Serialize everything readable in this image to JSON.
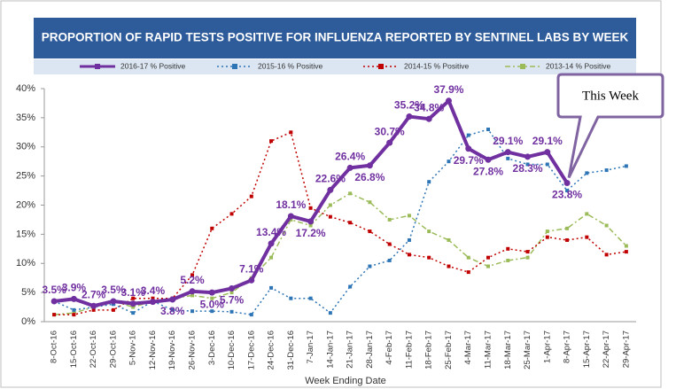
{
  "chart_data": {
    "type": "line",
    "title": "PROPORTION OF RAPID TESTS POSITIVE FOR INFLUENZA REPORTED BY SENTINEL LABS BY WEEK",
    "x_label": "Week Ending Date",
    "annotation": "This Week",
    "categories": [
      "8-Oct-16",
      "15-Oct-16",
      "22-Oct-16",
      "29-Oct-16",
      "5-Nov-16",
      "12-Nov-16",
      "19-Nov-16",
      "26-Nov-16",
      "3-Dec-16",
      "10-Dec-16",
      "17-Dec-16",
      "24-Dec-16",
      "31-Dec-16",
      "7-Jan-17",
      "14-Jan-17",
      "21-Jan-17",
      "28-Jan-17",
      "4-Feb-17",
      "11-Feb-17",
      "18-Feb-17",
      "25-Feb-17",
      "4-Mar-17",
      "11-Mar-17",
      "18-Mar-17",
      "25-Mar-17",
      "1-Apr-17",
      "8-Apr-17",
      "15-Apr-17",
      "22-Apr-17",
      "29-Apr-17"
    ],
    "series": [
      {
        "name": "2016-17 % Positive",
        "color": "#7030a0",
        "values": [
          3.5,
          3.9,
          2.7,
          3.5,
          3.1,
          3.4,
          3.8,
          5.2,
          5.0,
          5.7,
          7.1,
          13.4,
          18.1,
          17.2,
          22.6,
          26.4,
          26.8,
          30.7,
          35.2,
          34.8,
          37.9,
          29.7,
          27.8,
          29.1,
          28.3,
          29.1,
          23.8,
          null,
          null,
          null
        ],
        "value_labels": [
          "3.5%",
          "3.9%",
          "2.7%",
          "3.5%",
          "3.1%",
          "3.4%",
          "3.8%",
          "5.2%",
          "5.0%",
          "5.7%",
          "7.1%",
          "13.4%",
          "18.1%",
          "17.2%",
          "22.6%",
          "26.4%",
          "26.8%",
          "30.7%",
          "35.2%",
          "34.8%",
          "37.9%",
          "29.7%",
          "27.8%",
          "29.1%",
          "28.3%",
          "29.1%",
          "23.8%",
          null,
          null,
          null
        ]
      },
      {
        "name": "2015-16 % Positive",
        "color": "#2e75b6",
        "values": [
          3.5,
          2,
          2.5,
          3,
          1.5,
          3.5,
          2,
          1.8,
          1.8,
          1.7,
          1.2,
          5.8,
          4,
          4,
          1.5,
          6,
          9.5,
          10.5,
          14,
          24,
          27.5,
          32,
          33,
          28,
          27,
          27,
          22.5,
          25.5,
          26,
          26.7
        ]
      },
      {
        "name": "2014-15 % Positive",
        "color": "#c00000",
        "values": [
          1.2,
          1.2,
          2,
          2,
          4,
          4,
          4,
          8,
          16,
          18.5,
          21.5,
          31,
          32.5,
          19.5,
          18,
          17,
          15.5,
          13.3,
          11.5,
          11,
          9.5,
          8.5,
          11,
          12.5,
          12,
          14.5,
          14,
          14.5,
          11.5,
          12
        ]
      },
      {
        "name": "2013-14 % Positive",
        "color": "#9bbb59",
        "values": [
          1.2,
          1.5,
          2.5,
          3.5,
          2.5,
          3.5,
          4,
          4.5,
          4,
          5,
          7.5,
          11,
          17.5,
          16.5,
          20,
          22,
          20.5,
          17.5,
          18.2,
          15.5,
          14,
          11,
          9.5,
          10.5,
          11,
          15.5,
          16,
          18.5,
          16.5,
          13
        ]
      }
    ],
    "ylim": [
      0,
      40
    ],
    "yticks": [
      {
        "value": 0,
        "label": "0%"
      },
      {
        "value": 5,
        "label": "5%"
      },
      {
        "value": 10,
        "label": "10%"
      },
      {
        "value": 15,
        "label": "15%"
      },
      {
        "value": 20,
        "label": "20%"
      },
      {
        "value": 25,
        "label": "25%"
      },
      {
        "value": 30,
        "label": "30%"
      },
      {
        "value": 35,
        "label": "35%"
      },
      {
        "value": 40,
        "label": "40%"
      }
    ]
  }
}
